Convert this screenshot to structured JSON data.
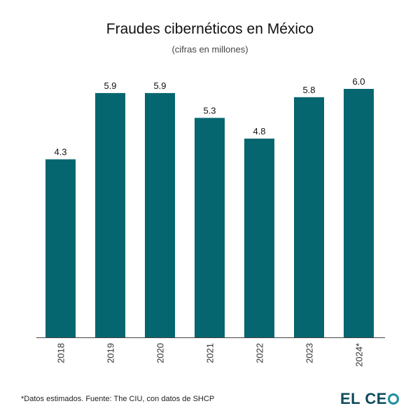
{
  "chart_data": {
    "type": "bar",
    "title": "Fraudes cibernéticos en México",
    "subtitle": "(cifras en millones)",
    "categories": [
      "2018",
      "2019",
      "2020",
      "2021",
      "2022",
      "2023",
      "2024*"
    ],
    "values": [
      4.3,
      5.9,
      5.9,
      5.3,
      4.8,
      5.8,
      6.0
    ],
    "value_labels": [
      "4.3",
      "5.9",
      "5.9",
      "5.3",
      "4.8",
      "5.8",
      "6.0"
    ],
    "ylim": [
      0,
      6.0
    ],
    "grid": false,
    "bar_color": "#056670"
  },
  "footer": {
    "note": "*Datos estimados. Fuente: The CIU, con datos de SHCP",
    "logo_text": "EL CE"
  }
}
